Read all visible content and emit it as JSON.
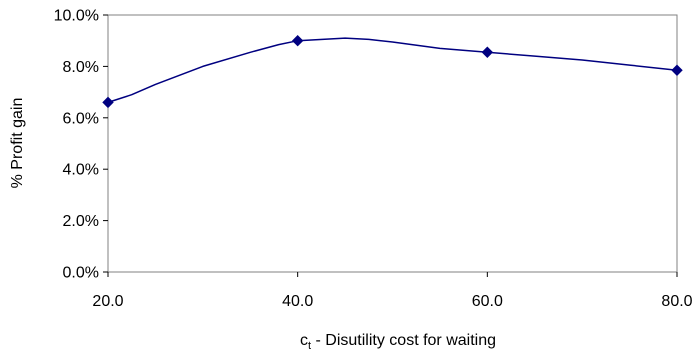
{
  "chart_data": {
    "type": "line",
    "x": [
      20.0,
      22.5,
      25.0,
      30.0,
      35.0,
      38.0,
      40.0,
      45.0,
      47.5,
      50.0,
      55.0,
      60.0,
      65.0,
      70.0,
      75.0,
      80.0
    ],
    "y": [
      6.6,
      6.9,
      7.3,
      8.0,
      8.55,
      8.85,
      9.0,
      9.1,
      9.05,
      8.95,
      8.7,
      8.55,
      8.4,
      8.25,
      8.05,
      7.85
    ],
    "markers": [
      {
        "x": 20.0,
        "y": 6.6
      },
      {
        "x": 40.0,
        "y": 9.0
      },
      {
        "x": 60.0,
        "y": 8.55
      },
      {
        "x": 80.0,
        "y": 7.85
      }
    ],
    "xlim": [
      20.0,
      80.0
    ],
    "ylim": [
      0.0,
      10.0
    ],
    "x_ticks": [
      20.0,
      40.0,
      60.0,
      80.0
    ],
    "y_ticks": [
      0.0,
      2.0,
      4.0,
      6.0,
      8.0,
      10.0
    ],
    "x_tick_labels": [
      "20.0",
      "40.0",
      "60.0",
      "80.0"
    ],
    "y_tick_labels": [
      "0.0%",
      "2.0%",
      "4.0%",
      "6.0%",
      "8.0%",
      "10.0%"
    ],
    "xlabel": {
      "main": "c",
      "subscript": "t",
      "rest": " - Disutility cost for waiting"
    },
    "ylabel": "% Profit gain",
    "grid": false,
    "line_color": "#000080",
    "marker_color": "#000080",
    "axis_color": "#808080"
  }
}
